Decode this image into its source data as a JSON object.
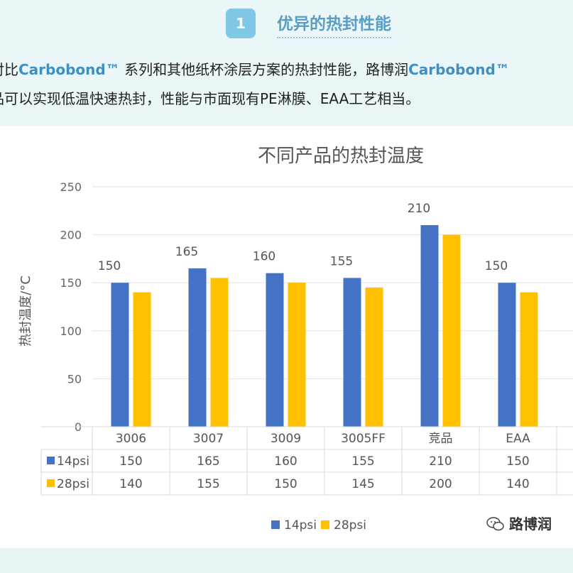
{
  "header": {
    "badge_number": "1",
    "title": "优异的热封性能"
  },
  "intro": {
    "line1_a": "对比",
    "line1_brand1": "Carbobond™",
    "line1_b": " 系列和其他纸杯涂层方案的热封性能，路博润",
    "line1_brand2": "Carbobond™",
    "line2": "品可以实现低温快速热封，性能与市面现有PE淋膜、EAA工艺相当。"
  },
  "watermark": {
    "text": "路博润"
  },
  "colors": {
    "accent": "#5a9ec4",
    "series_14psi": "#4472c4",
    "series_28psi": "#ffc000"
  },
  "chart_data": {
    "type": "bar",
    "title": "不同产品的热封温度",
    "ylabel": "热封温度/°C",
    "xlabel": "",
    "ylim": [
      0,
      250
    ],
    "yticks": [
      0,
      50,
      100,
      150,
      200,
      250
    ],
    "grid": true,
    "legend_position": "bottom",
    "categories": [
      "3006",
      "3007",
      "3009",
      "3005FF",
      "竞品",
      "EAA"
    ],
    "series": [
      {
        "name": "14psi",
        "color": "#4472c4",
        "values": [
          150,
          165,
          160,
          155,
          210,
          150
        ]
      },
      {
        "name": "28psi",
        "color": "#ffc000",
        "values": [
          140,
          155,
          150,
          145,
          200,
          140
        ]
      }
    ],
    "data_labels": [
      "150",
      "165",
      "160",
      "155",
      "210",
      "150"
    ]
  }
}
